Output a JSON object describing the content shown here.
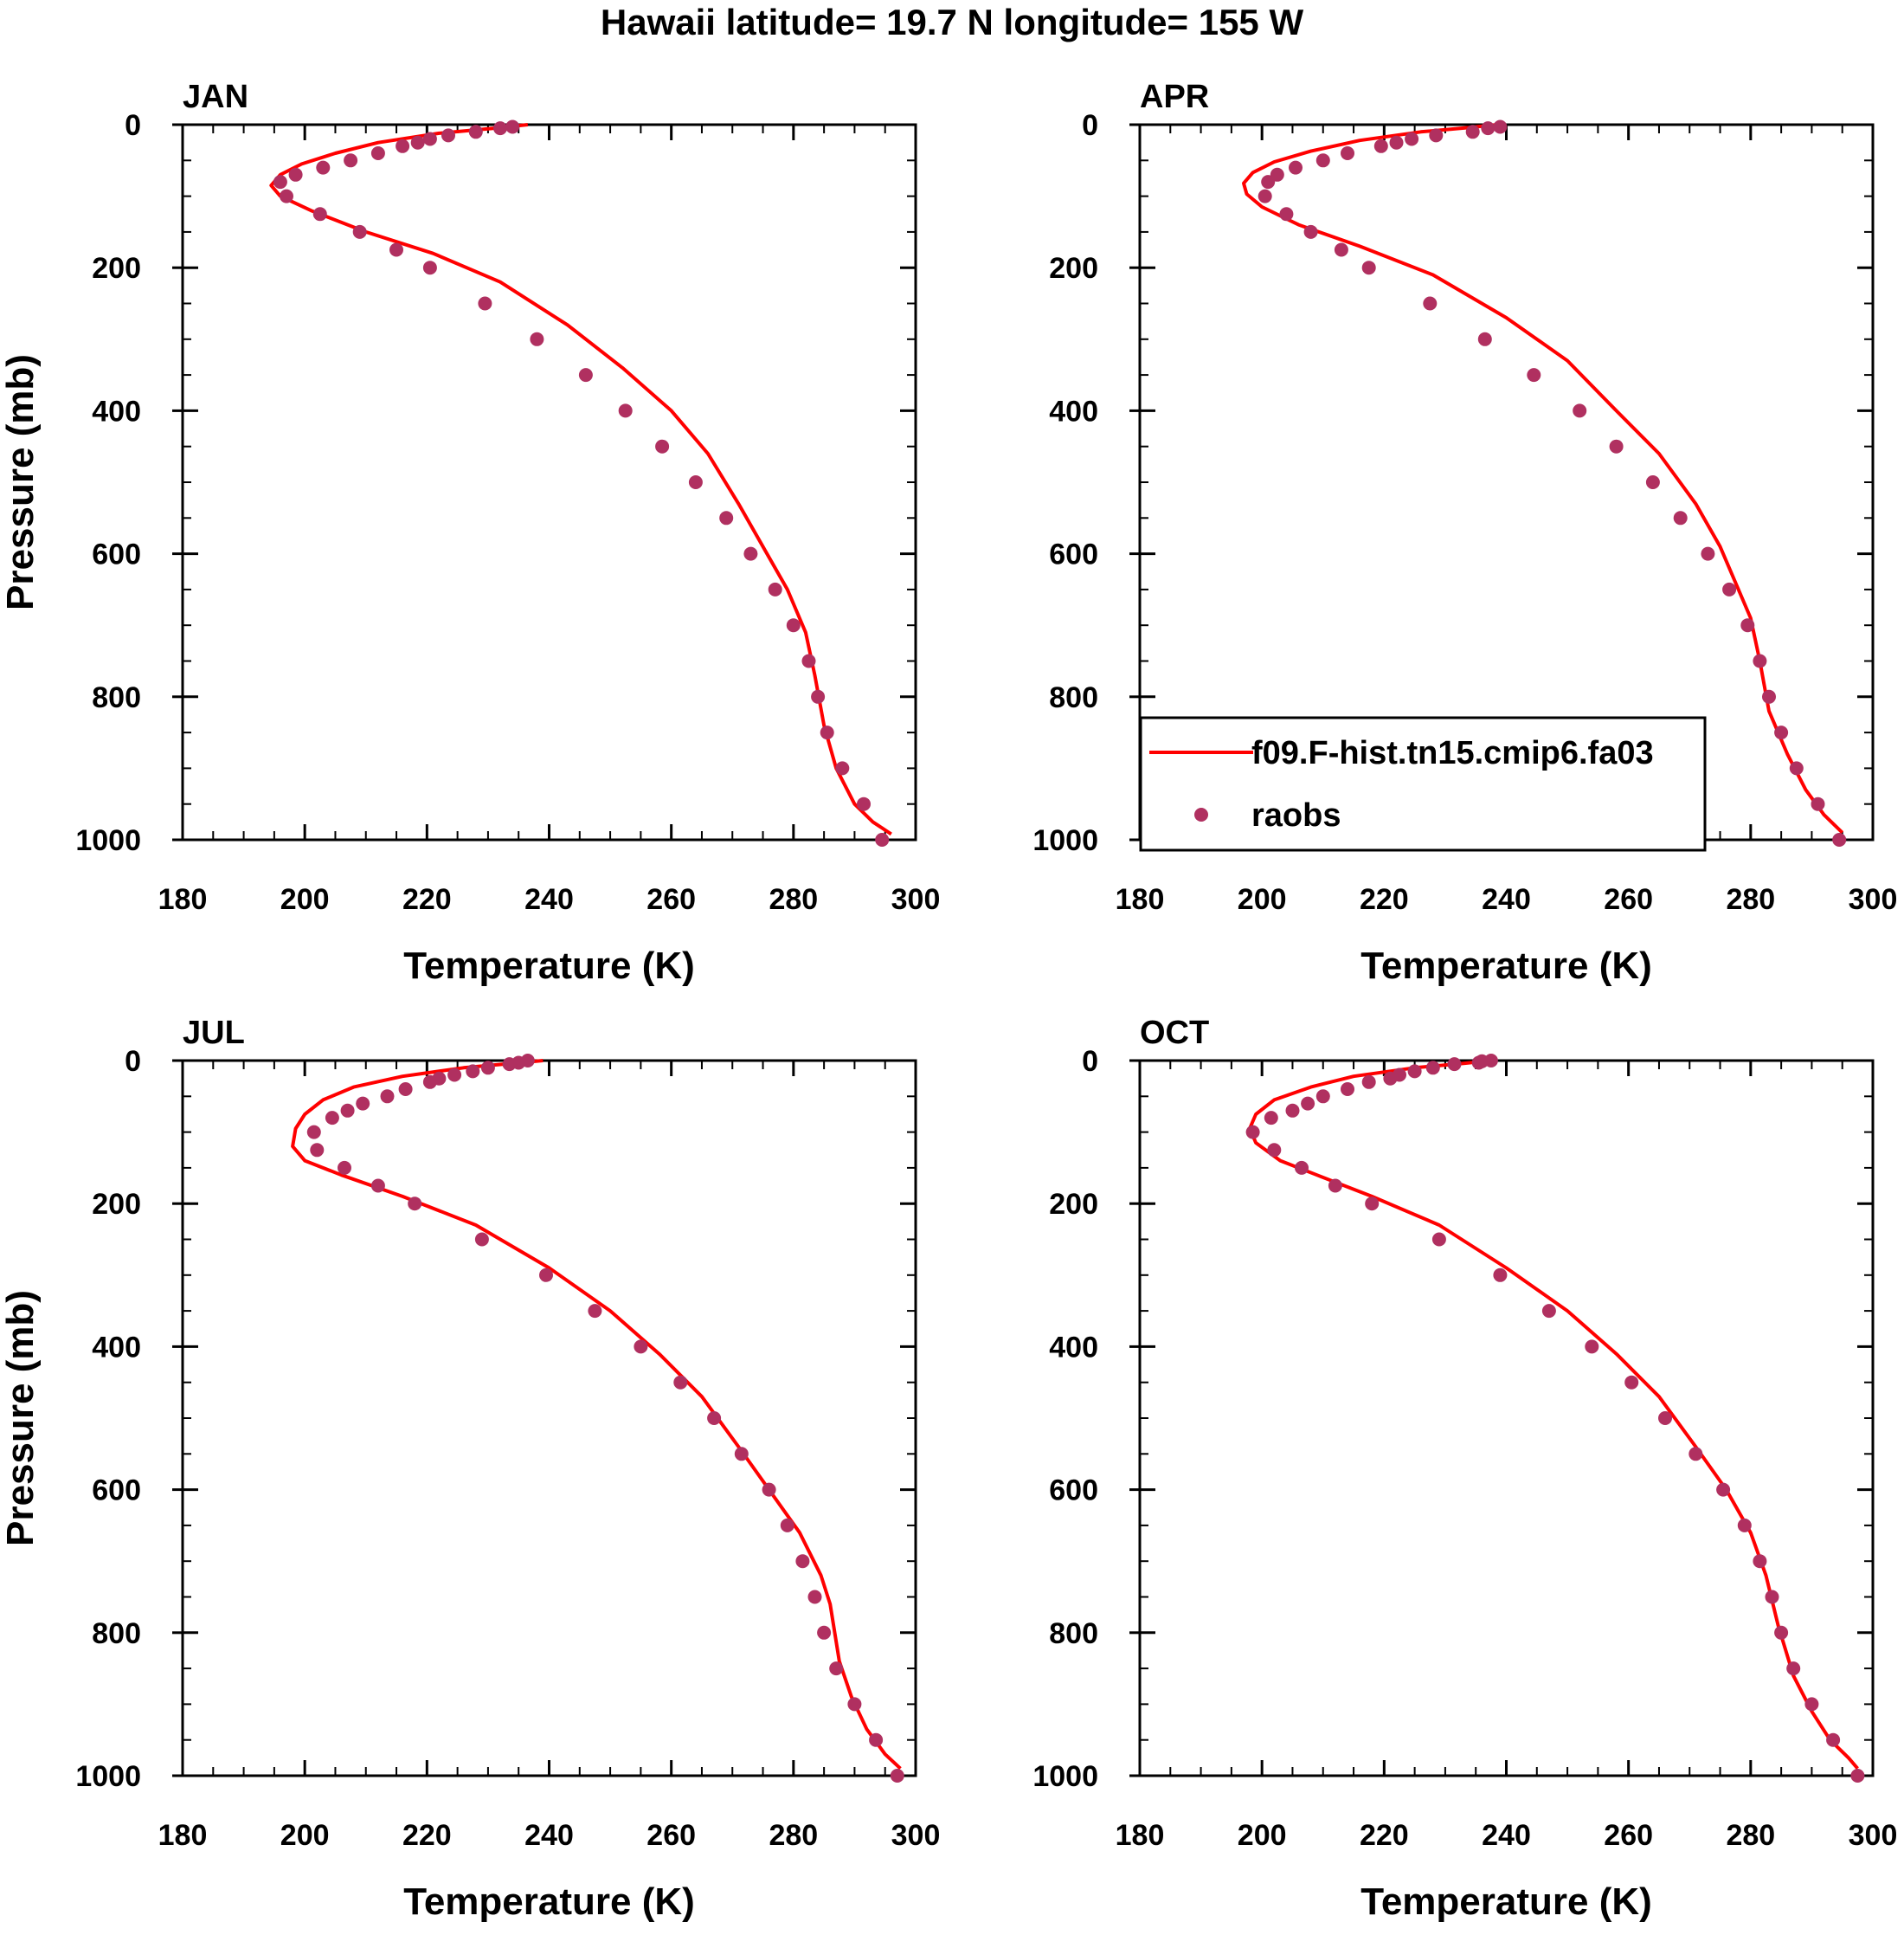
{
  "figure": {
    "title": "Hawaii  latitude= 19.7 N longitude= 155 W"
  },
  "colors": {
    "model_line": "#ff0000",
    "obs_marker": "#b03060",
    "axis": "#000000"
  },
  "legend": {
    "placement": "lower-left inside APR panel",
    "entries": [
      {
        "label": "f09.F-hist.tn15.cmip6.fa03",
        "style": "line"
      },
      {
        "label": "raobs",
        "style": "marker"
      }
    ]
  },
  "chart_data": [
    {
      "type": "line",
      "panel": "JAN",
      "xlabel": "Temperature (K)",
      "ylabel": "Pressure (mb)",
      "xlim": [
        180,
        300
      ],
      "ylim": [
        1000,
        0
      ],
      "x_ticks": [
        "180",
        "200",
        "220",
        "240",
        "260",
        "280",
        "300"
      ],
      "y_ticks": [
        "0",
        "200",
        "400",
        "600",
        "800",
        "1000"
      ],
      "grid": false,
      "series": [
        {
          "name": "f09.F-hist.tn15.cmip6.fa03",
          "style": "line",
          "x": [
            236.5,
            231,
            222,
            212,
            205,
            199.5,
            196,
            194.5,
            196,
            201,
            210,
            221,
            232,
            243,
            252,
            260,
            266,
            271,
            275,
            279,
            282,
            283.5,
            285,
            287,
            290,
            293,
            296
          ],
          "y": [
            0,
            5,
            12,
            25,
            40,
            55,
            70,
            85,
            100,
            120,
            150,
            180,
            220,
            280,
            340,
            400,
            460,
            530,
            590,
            650,
            710,
            770,
            840,
            900,
            950,
            975,
            992
          ]
        },
        {
          "name": "raobs",
          "style": "marker",
          "x": [
            234,
            232,
            228,
            223.5,
            220.5,
            218.5,
            216,
            212,
            207.5,
            203,
            198.5,
            196,
            197,
            202.5,
            209,
            215,
            220.5,
            229.5,
            238,
            246,
            252.5,
            258.5,
            264,
            269,
            273,
            277,
            280,
            282.5,
            284,
            285.5,
            288,
            291.5,
            294.5
          ],
          "y": [
            3,
            5,
            10,
            15,
            20,
            25,
            30,
            40,
            50,
            60,
            70,
            80,
            100,
            125,
            150,
            175,
            200,
            250,
            300,
            350,
            400,
            450,
            500,
            550,
            600,
            650,
            700,
            750,
            800,
            850,
            900,
            950,
            1000
          ]
        }
      ]
    },
    {
      "type": "line",
      "panel": "APR",
      "xlabel": "Temperature (K)",
      "ylabel": "Pressure (mb)",
      "xlim": [
        180,
        300
      ],
      "ylim": [
        1000,
        0
      ],
      "x_ticks": [
        "180",
        "200",
        "220",
        "240",
        "260",
        "280",
        "300"
      ],
      "y_ticks": [
        "0",
        "200",
        "400",
        "600",
        "800",
        "1000"
      ],
      "grid": false,
      "series": [
        {
          "name": "f09.F-hist.tn15.cmip6.fa03",
          "style": "line",
          "x": [
            238.5,
            234,
            226,
            216,
            208,
            202,
            198.5,
            197,
            197.5,
            200,
            206,
            216,
            228,
            240,
            250,
            258,
            265,
            271,
            275,
            278,
            280,
            281.5,
            283,
            286,
            289,
            292,
            295
          ],
          "y": [
            0,
            4,
            10,
            22,
            37,
            52,
            67,
            82,
            97,
            115,
            140,
            170,
            210,
            270,
            330,
            400,
            460,
            530,
            590,
            650,
            690,
            750,
            820,
            880,
            930,
            965,
            990
          ]
        },
        {
          "name": "raobs",
          "style": "marker",
          "x": [
            239,
            237,
            234.5,
            228.5,
            224.5,
            222,
            219.5,
            214,
            210,
            205.5,
            202.5,
            201,
            200.5,
            204,
            208,
            213,
            217.5,
            227.5,
            236.5,
            244.5,
            252,
            258,
            264,
            268.5,
            273,
            276.5,
            279.5,
            281.5,
            283,
            285,
            287.5,
            291,
            294.5
          ],
          "y": [
            3,
            5,
            10,
            15,
            20,
            25,
            30,
            40,
            50,
            60,
            70,
            80,
            100,
            125,
            150,
            175,
            200,
            250,
            300,
            350,
            400,
            450,
            500,
            550,
            600,
            650,
            700,
            750,
            800,
            850,
            900,
            950,
            1000
          ]
        }
      ]
    },
    {
      "type": "line",
      "panel": "JUL",
      "xlabel": "Temperature (K)",
      "ylabel": "Pressure (mb)",
      "xlim": [
        180,
        300
      ],
      "ylim": [
        1000,
        0
      ],
      "x_ticks": [
        "180",
        "200",
        "220",
        "240",
        "260",
        "280",
        "300"
      ],
      "y_ticks": [
        "0",
        "200",
        "400",
        "600",
        "800",
        "1000"
      ],
      "grid": false,
      "series": [
        {
          "name": "f09.F-hist.tn15.cmip6.fa03",
          "style": "line",
          "x": [
            239,
            234,
            226,
            216,
            208,
            203,
            200,
            198.5,
            198,
            200,
            206,
            216,
            228,
            240,
            250,
            258,
            265,
            271,
            276,
            281,
            284.5,
            286,
            287.5,
            289.5,
            292,
            295,
            297.5
          ],
          "y": [
            0,
            4,
            10,
            22,
            37,
            55,
            75,
            95,
            120,
            140,
            160,
            190,
            230,
            290,
            350,
            410,
            470,
            540,
            600,
            660,
            720,
            760,
            840,
            890,
            935,
            970,
            990
          ]
        },
        {
          "name": "raobs",
          "style": "marker",
          "x": [
            236.5,
            235,
            233.5,
            230,
            227.5,
            224.5,
            222,
            220.5,
            216.5,
            213.5,
            209.5,
            207,
            204.5,
            201.5,
            202,
            206.5,
            212,
            218,
            229,
            239.5,
            247.5,
            255,
            261.5,
            267,
            271.5,
            276,
            279,
            281.5,
            283.5,
            285,
            287,
            290,
            293.5,
            297
          ],
          "y": [
            0,
            3,
            5,
            10,
            15,
            20,
            25,
            30,
            40,
            50,
            60,
            70,
            80,
            100,
            125,
            150,
            175,
            200,
            250,
            300,
            350,
            400,
            450,
            500,
            550,
            600,
            650,
            700,
            750,
            800,
            850,
            900,
            950,
            1000
          ]
        }
      ]
    },
    {
      "type": "line",
      "panel": "OCT",
      "xlabel": "Temperature (K)",
      "ylabel": "Pressure (mb)",
      "xlim": [
        180,
        300
      ],
      "ylim": [
        1000,
        0
      ],
      "x_ticks": [
        "180",
        "200",
        "220",
        "240",
        "260",
        "280",
        "300"
      ],
      "y_ticks": [
        "0",
        "200",
        "400",
        "600",
        "800",
        "1000"
      ],
      "grid": false,
      "series": [
        {
          "name": "f09.F-hist.tn15.cmip6.fa03",
          "style": "line",
          "x": [
            237.5,
            233,
            225,
            215,
            208,
            202,
            199,
            198,
            199,
            203,
            209,
            218,
            229,
            240,
            250,
            258,
            265,
            271,
            276,
            280,
            282.5,
            284.5,
            287,
            290,
            293,
            296,
            297.5
          ],
          "y": [
            0,
            4,
            10,
            22,
            37,
            55,
            75,
            95,
            115,
            140,
            160,
            190,
            230,
            290,
            350,
            410,
            470,
            540,
            600,
            660,
            720,
            790,
            860,
            910,
            950,
            975,
            990
          ]
        },
        {
          "name": "raobs",
          "style": "marker",
          "x": [
            237.5,
            236,
            235.5,
            231.5,
            228,
            225,
            222.5,
            221,
            217.5,
            214,
            210,
            207.5,
            205,
            201.5,
            198.5,
            202,
            206.5,
            212,
            218,
            229,
            239,
            247,
            254,
            260.5,
            266,
            271,
            275.5,
            279,
            281.5,
            283.5,
            285,
            287,
            290,
            293.5,
            297.5
          ],
          "y": [
            0,
            1,
            3,
            5,
            10,
            15,
            20,
            25,
            30,
            40,
            50,
            60,
            70,
            80,
            100,
            125,
            150,
            175,
            200,
            250,
            300,
            350,
            400,
            450,
            500,
            550,
            600,
            650,
            700,
            750,
            800,
            850,
            900,
            950,
            1000
          ]
        }
      ]
    }
  ]
}
